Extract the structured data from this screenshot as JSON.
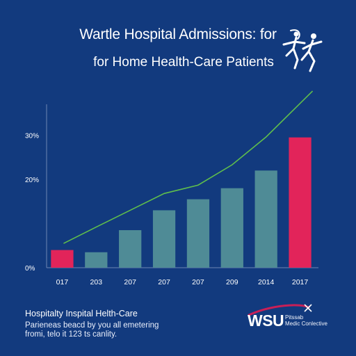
{
  "header": {
    "title_line1": "Wartle Hospital Admissions: for",
    "title_line2": "for Home Health-Care Patients"
  },
  "footer": {
    "title": "Hospitalty Inspital Helth-Care",
    "line1": "Parieneas beacd by you all emetering",
    "line2": "fromi, telo it 123 ts canlity."
  },
  "brand": {
    "name": "WSU",
    "sub_line1": "Pitssab",
    "sub_line2": "Medic Conlective"
  },
  "colors": {
    "background": "#123a7e",
    "bar": "#4f8b96",
    "highlight_bar": "#e2245a",
    "line": "#5fbe4c",
    "axis": "#6f86b4"
  },
  "chart_data": {
    "type": "bar",
    "categories": [
      "017",
      "203",
      "207",
      "207",
      "207",
      "209",
      "2014",
      "2017"
    ],
    "values": [
      4,
      3.5,
      8.5,
      13,
      15.5,
      18,
      22,
      29.5
    ],
    "highlight": [
      0,
      7
    ],
    "y_tick_values": [
      0,
      20,
      30
    ],
    "y_tick_labels": [
      "0%",
      "20%",
      "30%"
    ],
    "ylim": [
      0,
      37
    ],
    "line_series": {
      "values": [
        5.5,
        9.2,
        13,
        16.8,
        18.7,
        23.3,
        29.6,
        40
      ]
    },
    "title": "Wartle Hospital Admissions: for\nfor Home Health-Care Patients",
    "xlabel": "",
    "ylabel": "",
    "grid": false
  }
}
